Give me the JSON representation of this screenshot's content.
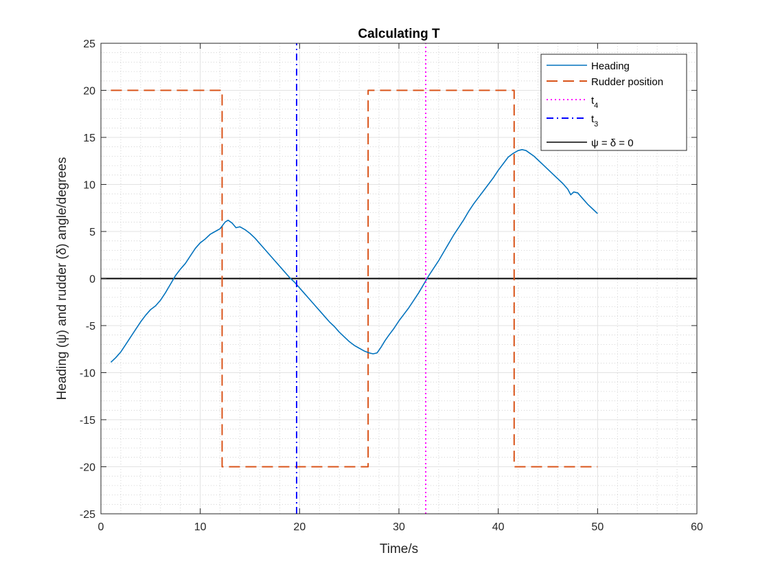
{
  "chart_data": {
    "type": "line",
    "title": "Calculating T",
    "xlabel": "Time/s",
    "ylabel": "Heading (ψ) and rudder (δ) angle/degrees",
    "xlim": [
      0,
      60
    ],
    "ylim": [
      -25,
      25
    ],
    "xticks": [
      0,
      10,
      20,
      30,
      40,
      50,
      60
    ],
    "yticks": [
      -25,
      -20,
      -15,
      -10,
      -5,
      0,
      5,
      10,
      15,
      20,
      25
    ],
    "grid": true,
    "minor_grid": true,
    "legend_position": "top-right",
    "series": [
      {
        "name": "Heading",
        "style": "solid",
        "color": "#0072BD",
        "x": [
          1.0,
          1.5,
          2.0,
          2.5,
          3.0,
          3.5,
          4.0,
          4.5,
          5.0,
          5.5,
          6.0,
          6.5,
          7.0,
          7.5,
          8.0,
          8.5,
          9.0,
          9.5,
          10.0,
          10.5,
          11.0,
          11.5,
          12.0,
          12.5,
          12.8,
          13.2,
          13.6,
          14.0,
          14.5,
          15.0,
          15.5,
          16.0,
          16.5,
          17.0,
          17.5,
          18.0,
          18.5,
          19.0,
          19.5,
          20.0,
          20.5,
          21.0,
          21.5,
          22.0,
          22.5,
          23.0,
          23.5,
          24.0,
          24.5,
          25.0,
          25.5,
          26.0,
          26.5,
          27.0,
          27.4,
          27.8,
          28.2,
          28.6,
          29.0,
          29.5,
          30.0,
          30.5,
          31.0,
          31.5,
          32.0,
          32.5,
          33.0,
          33.5,
          34.0,
          34.5,
          35.0,
          35.5,
          36.0,
          36.5,
          37.0,
          37.5,
          38.0,
          38.5,
          39.0,
          39.5,
          40.0,
          40.5,
          41.0,
          41.5,
          42.0,
          42.4,
          42.8,
          43.2,
          43.6,
          44.0,
          44.5,
          45.0,
          45.5,
          46.0,
          46.5,
          47.0,
          47.3,
          47.6,
          48.0,
          48.5,
          49.0,
          49.5,
          50.0
        ],
        "y": [
          -8.9,
          -8.4,
          -7.8,
          -7.0,
          -6.2,
          -5.4,
          -4.6,
          -3.9,
          -3.3,
          -2.9,
          -2.3,
          -1.5,
          -0.6,
          0.3,
          1.0,
          1.6,
          2.4,
          3.2,
          3.8,
          4.2,
          4.7,
          5.0,
          5.3,
          6.0,
          6.2,
          5.9,
          5.4,
          5.5,
          5.2,
          4.8,
          4.3,
          3.7,
          3.1,
          2.5,
          1.9,
          1.3,
          0.7,
          0.1,
          -0.4,
          -1.0,
          -1.6,
          -2.2,
          -2.8,
          -3.4,
          -4.0,
          -4.6,
          -5.1,
          -5.7,
          -6.2,
          -6.7,
          -7.1,
          -7.4,
          -7.7,
          -7.9,
          -8.0,
          -7.9,
          -7.3,
          -6.6,
          -6.0,
          -5.3,
          -4.5,
          -3.8,
          -3.1,
          -2.3,
          -1.5,
          -0.6,
          0.3,
          1.1,
          1.9,
          2.8,
          3.7,
          4.6,
          5.4,
          6.2,
          7.1,
          7.9,
          8.6,
          9.3,
          10.0,
          10.7,
          11.5,
          12.2,
          12.9,
          13.3,
          13.6,
          13.7,
          13.6,
          13.3,
          13.0,
          12.6,
          12.1,
          11.6,
          11.1,
          10.6,
          10.1,
          9.5,
          8.9,
          9.2,
          9.1,
          8.5,
          7.9,
          7.4,
          6.9
        ]
      },
      {
        "name": "Rudder position",
        "style": "dashed",
        "color": "#D95319",
        "x": [
          1.0,
          12.2,
          12.2,
          26.9,
          26.9,
          41.6,
          41.6,
          50.0
        ],
        "y": [
          20,
          20,
          -20,
          -20,
          20,
          20,
          -20,
          -20
        ]
      },
      {
        "name": "t4",
        "style": "dotted",
        "color": "#FF00FF",
        "x": [
          32.7,
          32.7
        ],
        "y": [
          -25,
          25
        ]
      },
      {
        "name": "t3",
        "style": "dashdot",
        "color": "#0000FF",
        "x": [
          19.7,
          19.7
        ],
        "y": [
          -25,
          25
        ]
      },
      {
        "name": "ψ = δ = 0",
        "style": "solid",
        "color": "#000000",
        "x": [
          0,
          60
        ],
        "y": [
          0,
          0
        ]
      }
    ]
  }
}
